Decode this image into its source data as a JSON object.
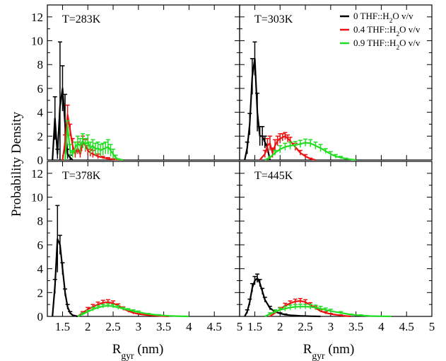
{
  "chart_data": {
    "type": "line",
    "layout": "2x2 panels",
    "xlabel": "R_gyr (nm)",
    "ylabel": "Probability Density",
    "xlim": [
      1.2,
      5.0
    ],
    "ylim": [
      0,
      13
    ],
    "xticks": [
      1.5,
      2,
      2.5,
      3,
      3.5,
      4,
      4.5,
      5
    ],
    "xtick_labels": [
      "1.5",
      "2",
      "2.5",
      "3",
      "3.5",
      "4",
      "4.5",
      "5"
    ],
    "yticks": [
      0,
      2,
      4,
      6,
      8,
      10,
      12
    ],
    "ytick_labels": [
      "0",
      "2",
      "4",
      "6",
      "8",
      "10",
      "12"
    ],
    "error_bars": true,
    "legend": {
      "placement": "top-right of upper-right panel",
      "entries": [
        {
          "label": "0    THF::H2O v/v",
          "color": "#000000"
        },
        {
          "label": "0.4 THF::H2O v/v",
          "color": "#ee1111"
        },
        {
          "label": "0.9 THF::H2O v/v",
          "color": "#22dd22"
        }
      ]
    },
    "panels": [
      {
        "title": "T=283K",
        "series": [
          {
            "color": "#000000",
            "x": [
              1.3,
              1.35,
              1.4,
              1.45,
              1.5,
              1.55,
              1.6,
              1.65,
              1.7
            ],
            "y": [
              0,
              3.5,
              0.5,
              4.5,
              6,
              3,
              0.5,
              0.2,
              0
            ],
            "err": [
              0,
              1.8,
              0.4,
              5.4,
              1.9,
              2.5,
              0.4,
              0.2,
              0
            ]
          },
          {
            "color": "#ee1111",
            "x": [
              1.5,
              1.55,
              1.6,
              1.65,
              1.7,
              1.75,
              1.8,
              1.85,
              1.9,
              1.95,
              2,
              2.05,
              2.1,
              2.2,
              2.3,
              2.4,
              2.5,
              2.7
            ],
            "y": [
              0,
              1.5,
              3.8,
              2.5,
              1.2,
              0.5,
              1,
              0.5,
              1.5,
              1.2,
              0.8,
              0.6,
              0.5,
              0.3,
              0.2,
              0.1,
              0.05,
              0
            ],
            "err": [
              0,
              0.6,
              0.8,
              0.5,
              0.6,
              0.3,
              0.5,
              0.3,
              0.5,
              0.5,
              0.4,
              0.3,
              0.3,
              0.2,
              0.1,
              0.1,
              0.05,
              0
            ]
          },
          {
            "color": "#22dd22",
            "x": [
              1.55,
              1.6,
              1.65,
              1.7,
              1.75,
              1.8,
              1.85,
              1.9,
              1.95,
              2,
              2.05,
              2.1,
              2.15,
              2.2,
              2.25,
              2.3,
              2.35,
              2.4,
              2.45,
              2.5,
              2.55,
              2.6,
              2.7
            ],
            "y": [
              0,
              2.8,
              0.8,
              0.5,
              1,
              1.4,
              1.2,
              1.6,
              1.3,
              1.5,
              1,
              1.2,
              0.9,
              1,
              0.8,
              0.9,
              1,
              1.1,
              0.8,
              0.5,
              0.2,
              0.05,
              0
            ],
            "err": [
              0,
              0.5,
              0.5,
              0.3,
              0.5,
              0.6,
              0.6,
              0.6,
              0.5,
              0.6,
              0.5,
              0.5,
              0.5,
              0.5,
              0.5,
              0.5,
              0.5,
              0.6,
              0.5,
              0.4,
              0.2,
              0.05,
              0
            ]
          }
        ]
      },
      {
        "title": "T=303K",
        "series": [
          {
            "color": "#000000",
            "x": [
              1.3,
              1.35,
              1.4,
              1.45,
              1.5,
              1.55,
              1.6,
              1.65,
              1.7,
              1.75,
              1.8
            ],
            "y": [
              0,
              1,
              3,
              7,
              8.5,
              4,
              2,
              2,
              1.5,
              1,
              0
            ],
            "err": [
              0,
              0.5,
              0.9,
              1.5,
              1.4,
              1.6,
              0.8,
              0.8,
              0.5,
              0.3,
              0
            ]
          },
          {
            "color": "#ee1111",
            "x": [
              1.6,
              1.7,
              1.75,
              1.8,
              1.85,
              1.9,
              1.95,
              2,
              2.05,
              2.1,
              2.15,
              2.2,
              2.3,
              2.4,
              2.5,
              2.6,
              2.7
            ],
            "y": [
              0,
              0.5,
              1.2,
              1.4,
              0.6,
              1.2,
              1.6,
              1.8,
              1.9,
              2,
              1.8,
              1.6,
              1.1,
              0.6,
              0.3,
              0.1,
              0
            ],
            "err": [
              0,
              0.3,
              0.6,
              0.6,
              0.4,
              0.5,
              0.4,
              0.4,
              0.3,
              0.3,
              0.3,
              0.3,
              0.3,
              0.2,
              0.15,
              0.05,
              0
            ]
          },
          {
            "color": "#22dd22",
            "x": [
              1.7,
              1.8,
              1.9,
              2,
              2.1,
              2.2,
              2.3,
              2.4,
              2.5,
              2.6,
              2.7,
              2.8,
              2.9,
              3,
              3.1,
              3.2,
              3.3,
              3.4,
              3.5
            ],
            "y": [
              0,
              0.2,
              0.6,
              0.9,
              1.1,
              1.2,
              1.25,
              1.35,
              1.45,
              1.4,
              1.2,
              1,
              0.75,
              0.5,
              0.3,
              0.2,
              0.1,
              0.05,
              0
            ],
            "err": [
              0,
              0.1,
              0.2,
              0.3,
              0.3,
              0.3,
              0.3,
              0.3,
              0.3,
              0.3,
              0.3,
              0.3,
              0.2,
              0.2,
              0.15,
              0.1,
              0.05,
              0,
              0
            ]
          }
        ]
      },
      {
        "title": "T=378K",
        "series": [
          {
            "color": "#000000",
            "x": [
              1.3,
              1.35,
              1.4,
              1.45,
              1.5,
              1.55,
              1.6,
              1.65,
              1.7,
              1.8
            ],
            "y": [
              0,
              2.5,
              6.5,
              6,
              4,
              2,
              0.8,
              0.3,
              0.1,
              0
            ],
            "err": [
              0,
              0.6,
              2.8,
              0.8,
              0.5,
              0.3,
              0.2,
              0.1,
              0,
              0
            ]
          },
          {
            "color": "#ee1111",
            "x": [
              1.8,
              1.9,
              2,
              2.1,
              2.2,
              2.3,
              2.4,
              2.5,
              2.6,
              2.7,
              2.8,
              2.9,
              3,
              3.2,
              3.4,
              3.6
            ],
            "y": [
              0,
              0.3,
              0.6,
              0.8,
              1,
              1.15,
              1.2,
              1.1,
              0.9,
              0.65,
              0.45,
              0.3,
              0.2,
              0.1,
              0.05,
              0
            ],
            "err": [
              0,
              0.1,
              0.15,
              0.2,
              0.2,
              0.2,
              0.2,
              0.2,
              0.15,
              0.15,
              0.1,
              0.1,
              0.05,
              0.05,
              0,
              0
            ]
          },
          {
            "color": "#22dd22",
            "x": [
              1.8,
              1.9,
              2,
              2.1,
              2.2,
              2.3,
              2.4,
              2.5,
              2.6,
              2.7,
              2.8,
              2.9,
              3,
              3.2,
              3.4,
              3.6,
              3.8,
              4
            ],
            "y": [
              0,
              0.2,
              0.4,
              0.6,
              0.75,
              0.85,
              0.9,
              0.85,
              0.75,
              0.65,
              0.55,
              0.45,
              0.35,
              0.2,
              0.1,
              0.05,
              0.02,
              0
            ],
            "err": [
              0,
              0.1,
              0.1,
              0.15,
              0.15,
              0.15,
              0.15,
              0.15,
              0.15,
              0.1,
              0.1,
              0.1,
              0.1,
              0.05,
              0.05,
              0,
              0,
              0
            ]
          }
        ]
      },
      {
        "title": "T=445K",
        "series": [
          {
            "color": "#000000",
            "x": [
              1.3,
              1.35,
              1.4,
              1.45,
              1.5,
              1.55,
              1.6,
              1.65,
              1.7,
              1.8,
              1.9,
              2,
              2.1,
              2.2,
              2.4,
              2.6,
              2.8
            ],
            "y": [
              0,
              0.4,
              1.2,
              2.4,
              3,
              3.2,
              2.8,
              2.1,
              1.4,
              0.7,
              0.4,
              0.25,
              0.15,
              0.1,
              0.05,
              0.02,
              0
            ],
            "err": [
              0,
              0.15,
              0.25,
              0.35,
              0.35,
              0.35,
              0.3,
              0.25,
              0.2,
              0.15,
              0.1,
              0.05,
              0.05,
              0,
              0,
              0,
              0
            ]
          },
          {
            "color": "#ee1111",
            "x": [
              1.8,
              1.9,
              2,
              2.1,
              2.2,
              2.3,
              2.4,
              2.5,
              2.6,
              2.7,
              2.8,
              2.9,
              3,
              3.2,
              3.4
            ],
            "y": [
              0,
              0.3,
              0.6,
              0.9,
              1.1,
              1.25,
              1.3,
              1.2,
              0.95,
              0.7,
              0.45,
              0.3,
              0.2,
              0.08,
              0
            ],
            "err": [
              0,
              0.1,
              0.15,
              0.2,
              0.2,
              0.2,
              0.2,
              0.2,
              0.2,
              0.15,
              0.1,
              0.1,
              0.05,
              0.05,
              0
            ]
          },
          {
            "color": "#22dd22",
            "x": [
              1.7,
              1.8,
              1.9,
              2,
              2.1,
              2.2,
              2.3,
              2.4,
              2.5,
              2.6,
              2.7,
              2.8,
              2.9,
              3,
              3.2,
              3.4,
              3.6,
              3.8,
              4,
              4.2
            ],
            "y": [
              0,
              0.2,
              0.4,
              0.55,
              0.65,
              0.75,
              0.8,
              0.82,
              0.82,
              0.8,
              0.75,
              0.65,
              0.55,
              0.45,
              0.3,
              0.15,
              0.08,
              0.03,
              0.01,
              0
            ],
            "err": [
              0,
              0.1,
              0.15,
              0.15,
              0.2,
              0.2,
              0.2,
              0.2,
              0.2,
              0.2,
              0.2,
              0.2,
              0.15,
              0.15,
              0.1,
              0.05,
              0.05,
              0,
              0,
              0
            ]
          }
        ]
      }
    ]
  }
}
